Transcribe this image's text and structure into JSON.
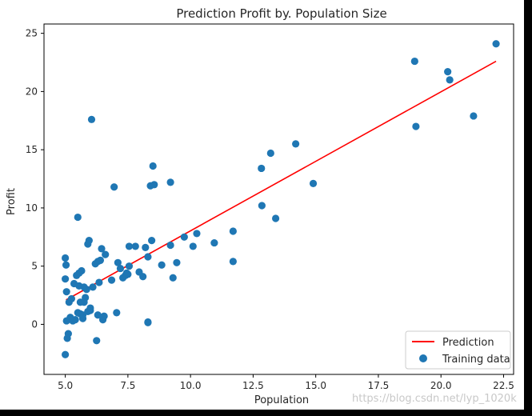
{
  "chart_data": {
    "type": "scatter",
    "title": "Prediction Profit by. Population Size",
    "xlabel": "Population",
    "ylabel": "Profit",
    "xlim": [
      4.15,
      22.9
    ],
    "ylim": [
      -4.3,
      25.8
    ],
    "xticks": [
      5.0,
      7.5,
      10.0,
      12.5,
      15.0,
      17.5,
      20.0,
      22.5
    ],
    "xtick_labels": [
      "5.0",
      "7.5",
      "10.0",
      "12.5",
      "15.0",
      "17.5",
      "20.0",
      "22.5"
    ],
    "yticks": [
      0,
      5,
      10,
      15,
      20,
      25
    ],
    "ytick_labels": [
      "0",
      "5",
      "10",
      "15",
      "20",
      "25"
    ],
    "grid": false,
    "legend_position": "bottom-right",
    "series": [
      {
        "name": "Prediction",
        "kind": "line",
        "color": "#ff0000",
        "x": [
          5.03,
          22.2
        ],
        "y": [
          2.1,
          22.6
        ]
      },
      {
        "name": "Training data",
        "kind": "scatter",
        "color": "#1f77b4",
        "x": [
          22.2,
          18.95,
          20.27,
          20.35,
          21.3,
          19.0,
          14.2,
          13.2,
          12.83,
          14.9,
          12.85,
          13.4,
          11.7,
          11.7,
          10.95,
          10.25,
          10.1,
          9.75,
          9.2,
          9.2,
          9.45,
          9.3,
          8.85,
          8.5,
          8.55,
          8.4,
          8.45,
          8.3,
          8.3,
          8.2,
          8.1,
          7.95,
          7.8,
          7.55,
          7.55,
          7.5,
          7.45,
          7.4,
          7.3,
          7.2,
          7.1,
          6.95,
          6.85,
          6.6,
          6.5,
          6.45,
          6.4,
          6.35,
          6.3,
          6.25,
          6.2,
          6.1,
          6.05,
          6.0,
          5.95,
          5.9,
          5.9,
          5.85,
          5.8,
          5.75,
          5.75,
          5.7,
          5.7,
          5.65,
          5.6,
          5.6,
          5.55,
          5.55,
          5.5,
          5.5,
          5.45,
          5.4,
          5.35,
          5.3,
          5.25,
          5.2,
          5.15,
          5.12,
          5.08,
          5.05,
          5.05,
          5.03,
          5.0,
          5.0,
          5.0,
          8.3,
          7.05,
          6.3,
          6.0,
          6.55
        ],
        "y": [
          24.1,
          22.6,
          21.7,
          21.0,
          17.9,
          17.0,
          15.5,
          14.7,
          13.4,
          12.1,
          10.2,
          9.1,
          8.0,
          5.4,
          7.0,
          7.8,
          6.7,
          7.5,
          12.2,
          6.8,
          5.3,
          4.0,
          5.1,
          13.6,
          12.0,
          11.9,
          7.2,
          5.8,
          0.15,
          6.6,
          4.1,
          4.5,
          6.7,
          6.7,
          5.0,
          4.3,
          4.4,
          4.2,
          4.0,
          4.8,
          5.3,
          11.8,
          3.8,
          6.0,
          0.4,
          6.5,
          5.5,
          3.6,
          5.4,
          -1.4,
          5.2,
          3.2,
          17.6,
          1.2,
          7.2,
          6.9,
          1.1,
          3.0,
          2.3,
          1.9,
          3.2,
          0.8,
          0.5,
          4.6,
          1.9,
          0.9,
          4.4,
          3.3,
          9.2,
          1.0,
          4.2,
          0.4,
          3.5,
          0.3,
          2.2,
          0.6,
          1.9,
          -0.8,
          -1.2,
          0.3,
          2.8,
          5.1,
          5.7,
          3.9,
          -2.6,
          0.2,
          1.0,
          0.8,
          1.4,
          0.7
        ]
      }
    ]
  },
  "watermark": "https://blog.csdn.net/lyp_1020k"
}
